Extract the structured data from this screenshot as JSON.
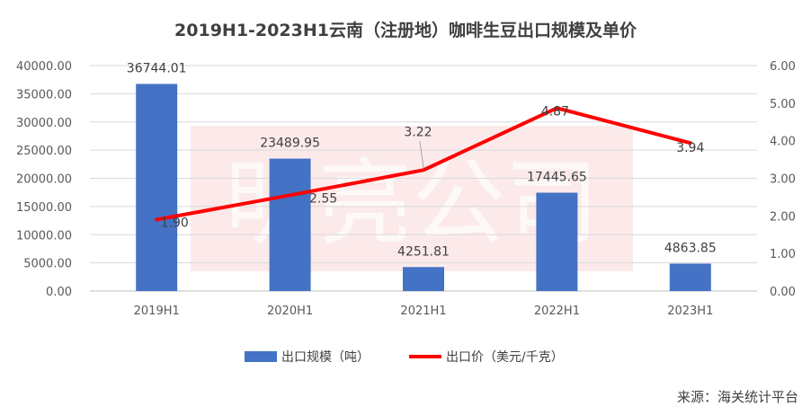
{
  "chart_data": {
    "type": "bar+line",
    "title": "2019H1-2023H1云南（注册地）咖啡生豆出口规模及单价",
    "categories": [
      "2019H1",
      "2020H1",
      "2021H1",
      "2022H1",
      "2023H1"
    ],
    "series": [
      {
        "name": "出口规模（吨）",
        "type": "bar",
        "axis": "left",
        "color": "#4472C4",
        "values": [
          36744.01,
          23489.95,
          4251.81,
          17445.65,
          4863.85
        ],
        "labels": [
          "36744.01",
          "23489.95",
          "4251.81",
          "17445.65",
          "4863.85"
        ]
      },
      {
        "name": "出口价（美元/千克）",
        "type": "line",
        "axis": "right",
        "color": "#FF0000",
        "values": [
          1.9,
          2.55,
          3.22,
          4.87,
          3.94
        ],
        "labels": [
          "1.90",
          "2.55",
          "3.22",
          "4.87",
          "3.94"
        ]
      }
    ],
    "y_left": {
      "ylim": [
        0,
        40000
      ],
      "ticks": [
        "0.00",
        "5000.00",
        "10000.00",
        "15000.00",
        "20000.00",
        "25000.00",
        "30000.00",
        "35000.00",
        "40000.00"
      ]
    },
    "y_right": {
      "ylim": [
        0,
        6
      ],
      "ticks": [
        "0.00",
        "1.00",
        "2.00",
        "3.00",
        "4.00",
        "5.00",
        "6.00"
      ]
    },
    "grid": true,
    "legend": "bottom-center"
  },
  "watermark": "明亮公司",
  "source": "来源：海关统计平台"
}
